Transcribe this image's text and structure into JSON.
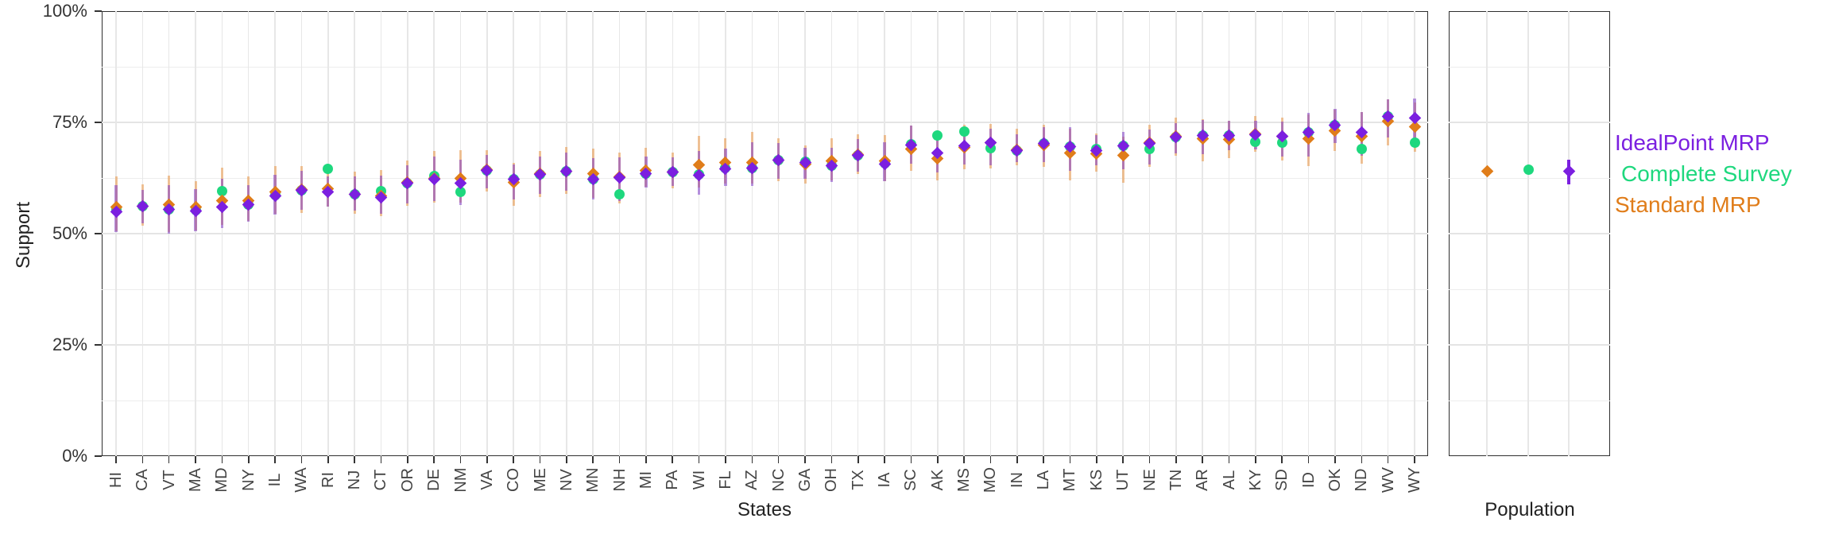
{
  "y_axis": {
    "title": "Support",
    "ticks": [
      "100%",
      "75%",
      "50%",
      "25%",
      "0%"
    ],
    "tick_values": [
      100,
      75,
      50,
      25,
      0
    ],
    "minor_values": [
      87.5,
      62.5,
      37.5,
      12.5
    ]
  },
  "x_axis": {
    "main_title": "States",
    "facet_title": "Population"
  },
  "legend": {
    "items": [
      {
        "label": "IdealPoint MRP",
        "color": "#7B1FE0"
      },
      {
        "label": "Complete Survey",
        "color": "#1ED87E"
      },
      {
        "label": "Standard MRP",
        "color": "#E07D1A"
      }
    ]
  },
  "colors": {
    "ideal_point": "#7B1FE0",
    "ideal_point_bar": "rgba(128,60,200,0.55)",
    "complete_survey": "#1ED87E",
    "standard_mrp": "#E07D1A",
    "standard_mrp_bar": "rgba(233,150,70,0.55)",
    "gridline": "#e7e7e7",
    "panel_border": "#2e2e2e"
  },
  "chart_data": {
    "type": "scatter",
    "subtype": "pointrange",
    "ylim": [
      0,
      100
    ],
    "ylabel": "Support",
    "xlabel": "States",
    "facet_label": "Population",
    "grid": true,
    "legend_position": "right",
    "series_names": [
      "IdealPoint MRP",
      "Complete Survey",
      "Standard MRP"
    ],
    "columns": [
      "state",
      "ideal_point_mrp",
      "ideal_lo",
      "ideal_hi",
      "standard_mrp",
      "complete_survey"
    ],
    "states": [
      [
        "HI",
        55.0,
        50.3,
        60.9,
        55.9,
        55.4
      ],
      [
        "CA",
        56.1,
        52.4,
        59.9,
        56.2,
        56.1
      ],
      [
        "VT",
        55.4,
        50.0,
        60.9,
        56.5,
        55.5
      ],
      [
        "MA",
        55.1,
        50.6,
        60.0,
        55.9,
        55.2
      ],
      [
        "MD",
        56.0,
        51.2,
        62.4,
        57.5,
        59.5
      ],
      [
        "NY",
        56.5,
        52.6,
        60.9,
        57.4,
        56.6
      ],
      [
        "IL",
        58.5,
        54.2,
        63.3,
        59.4,
        58.6
      ],
      [
        "WA",
        59.8,
        55.3,
        64.1,
        59.9,
        59.8
      ],
      [
        "RI",
        59.4,
        56.0,
        62.9,
        60.1,
        64.5
      ],
      [
        "NJ",
        58.8,
        55.1,
        62.9,
        58.9,
        58.8
      ],
      [
        "CT",
        58.2,
        54.4,
        63.0,
        58.5,
        59.5
      ],
      [
        "OR",
        61.4,
        56.8,
        65.3,
        61.6,
        61.4
      ],
      [
        "DE",
        62.2,
        57.4,
        67.3,
        62.4,
        63.0
      ],
      [
        "NM",
        61.4,
        56.5,
        66.6,
        62.5,
        59.4
      ],
      [
        "VA",
        64.2,
        60.1,
        67.7,
        64.3,
        64.2
      ],
      [
        "CO",
        62.2,
        57.6,
        65.6,
        61.5,
        62.2
      ],
      [
        "ME",
        63.3,
        58.9,
        67.4,
        63.4,
        63.3
      ],
      [
        "NV",
        64.0,
        59.6,
        68.3,
        64.1,
        64.0
      ],
      [
        "MN",
        62.2,
        57.6,
        66.9,
        63.4,
        62.3
      ],
      [
        "NH",
        62.6,
        57.3,
        67.1,
        62.8,
        58.9
      ],
      [
        "MI",
        63.4,
        60.4,
        67.4,
        64.2,
        63.5
      ],
      [
        "PA",
        63.8,
        60.7,
        67.2,
        63.9,
        63.8
      ],
      [
        "WI",
        63.2,
        58.8,
        68.6,
        65.5,
        63.3
      ],
      [
        "FL",
        64.6,
        60.7,
        69.1,
        65.9,
        64.7
      ],
      [
        "AZ",
        64.7,
        60.7,
        70.6,
        65.9,
        64.8
      ],
      [
        "NC",
        66.5,
        62.4,
        70.3,
        66.6,
        66.5
      ],
      [
        "GA",
        66.0,
        62.3,
        69.2,
        65.6,
        66.1
      ],
      [
        "OH",
        65.2,
        61.6,
        69.3,
        66.3,
        65.3
      ],
      [
        "TX",
        67.6,
        64.0,
        71.2,
        67.7,
        67.6
      ],
      [
        "IA",
        65.7,
        61.8,
        70.5,
        66.3,
        65.8
      ],
      [
        "SC",
        70.0,
        65.8,
        74.2,
        69.0,
        70.1
      ],
      [
        "AK",
        68.1,
        63.8,
        71.9,
        66.9,
        72.1
      ],
      [
        "MS",
        69.7,
        65.6,
        73.8,
        69.3,
        72.9
      ],
      [
        "MO",
        70.4,
        65.3,
        73.6,
        70.5,
        69.2
      ],
      [
        "IN",
        68.7,
        66.0,
        72.4,
        68.8,
        68.7
      ],
      [
        "LA",
        70.3,
        66.1,
        73.9,
        69.9,
        70.3
      ],
      [
        "MT",
        69.5,
        64.1,
        73.9,
        68.1,
        69.5
      ],
      [
        "KS",
        68.6,
        65.4,
        72.2,
        67.9,
        69.0
      ],
      [
        "UT",
        69.8,
        64.4,
        72.9,
        67.6,
        69.8
      ],
      [
        "NE",
        70.3,
        65.6,
        73.4,
        70.4,
        69.1
      ],
      [
        "TN",
        71.7,
        68.1,
        74.9,
        71.8,
        71.7
      ],
      [
        "AR",
        72.1,
        67.8,
        75.6,
        71.3,
        72.1
      ],
      [
        "AL",
        72.1,
        68.7,
        75.4,
        71.1,
        72.1
      ],
      [
        "KY",
        72.3,
        69.0,
        75.4,
        72.4,
        70.6
      ],
      [
        "SD",
        71.9,
        67.3,
        75.2,
        71.8,
        70.5
      ],
      [
        "ID",
        72.7,
        67.3,
        77.1,
        71.3,
        72.7
      ],
      [
        "OK",
        74.3,
        70.4,
        78.1,
        73.1,
        74.3
      ],
      [
        "ND",
        72.8,
        67.5,
        77.4,
        71.8,
        69.1
      ],
      [
        "WV",
        76.3,
        71.6,
        80.1,
        75.3,
        76.3
      ],
      [
        "WY",
        76.0,
        71.0,
        80.4,
        74.1,
        70.5
      ]
    ],
    "population": {
      "label": "Population",
      "ideal_point_mrp": 64.0,
      "ideal_lo": 61.1,
      "ideal_hi": 66.6,
      "standard_mrp": 64.1,
      "standard_lo": 63.0,
      "standard_hi": 65.2,
      "complete_survey": 64.4
    }
  }
}
